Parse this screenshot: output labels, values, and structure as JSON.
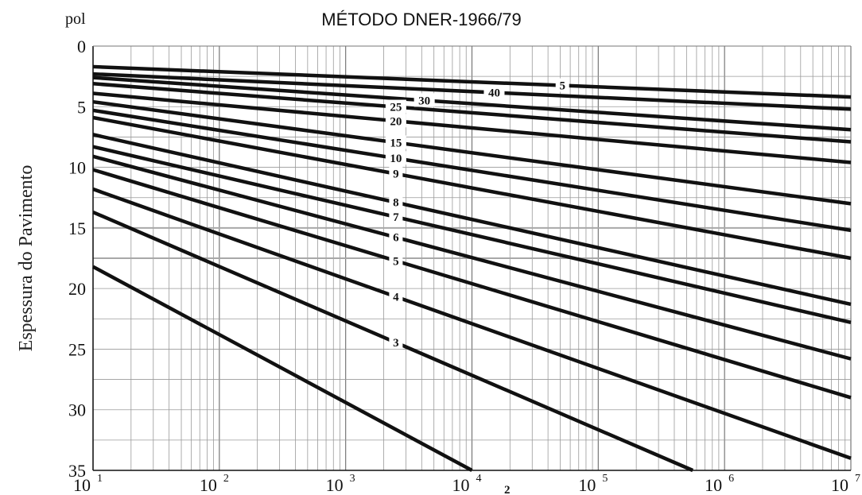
{
  "chart_data": {
    "type": "line",
    "title": "MÉTODO DNER-1966/79",
    "unit_label": "pol",
    "ylabel": "Espessura do Pavimento",
    "xlabel": "",
    "x_scale": "log",
    "y_inverted": true,
    "xlim": [
      10,
      10000000
    ],
    "ylim": [
      0,
      35
    ],
    "grid": true,
    "y_ticks": [
      "0",
      "5",
      "10",
      "15",
      "20",
      "25",
      "30",
      "35"
    ],
    "x_ticks": [
      {
        "base": "10",
        "exp": "1"
      },
      {
        "base": "10",
        "exp": "2"
      },
      {
        "base": "10",
        "exp": "3"
      },
      {
        "base": "10",
        "exp": "4"
      },
      {
        "base": "10",
        "exp": "5"
      },
      {
        "base": "10",
        "exp": "6"
      },
      {
        "base": "10",
        "exp": "7"
      }
    ],
    "series": [
      {
        "name": "2",
        "x": [
          10,
          10000
        ],
        "y": [
          18.2,
          35.0
        ]
      },
      {
        "name": "3",
        "x": [
          10,
          560000
        ],
        "y": [
          13.7,
          35.0
        ]
      },
      {
        "name": "4",
        "x": [
          10,
          10000000
        ],
        "y": [
          11.8,
          34.0
        ]
      },
      {
        "name": "5",
        "x": [
          10,
          10000000
        ],
        "y": [
          10.2,
          29.0
        ]
      },
      {
        "name": "6",
        "x": [
          10,
          10000000
        ],
        "y": [
          9.1,
          25.8
        ]
      },
      {
        "name": "7",
        "x": [
          10,
          10000000
        ],
        "y": [
          8.3,
          22.8
        ]
      },
      {
        "name": "8",
        "x": [
          10,
          10000000
        ],
        "y": [
          7.3,
          21.3
        ]
      },
      {
        "name": "9",
        "x": [
          10,
          10000000
        ],
        "y": [
          5.9,
          17.5
        ]
      },
      {
        "name": "10",
        "x": [
          10,
          10000000
        ],
        "y": [
          5.3,
          15.2
        ]
      },
      {
        "name": "15",
        "x": [
          10,
          10000000
        ],
        "y": [
          4.6,
          13.0
        ]
      },
      {
        "name": "20",
        "x": [
          10,
          10000000
        ],
        "y": [
          3.9,
          9.6
        ]
      },
      {
        "name": "25",
        "x": [
          10,
          10000000
        ],
        "y": [
          3.1,
          7.9
        ]
      },
      {
        "name": "30",
        "x": [
          10,
          10000000
        ],
        "y": [
          2.6,
          6.9
        ]
      },
      {
        "name": "40",
        "x": [
          10,
          10000000
        ],
        "y": [
          2.3,
          5.2
        ]
      },
      {
        "name": "5",
        "x": [
          10,
          10000000
        ],
        "y": [
          1.7,
          4.2
        ]
      }
    ],
    "label_positions": [
      {
        "name": "2",
        "x": 19000
      },
      {
        "name": "3",
        "x": 2500
      },
      {
        "name": "4",
        "x": 2500
      },
      {
        "name": "5",
        "x": 2500
      },
      {
        "name": "6",
        "x": 2500
      },
      {
        "name": "7",
        "x": 2500
      },
      {
        "name": "8",
        "x": 2500
      },
      {
        "name": "9",
        "x": 2500
      },
      {
        "name": "10",
        "x": 2500
      },
      {
        "name": "15",
        "x": 2500
      },
      {
        "name": "20",
        "x": 2500
      },
      {
        "name": "25",
        "x": 2500
      },
      {
        "name": "30",
        "x": 4200
      },
      {
        "name": "40",
        "x": 15000
      },
      {
        "name": "5",
        "x": 52000
      }
    ]
  }
}
